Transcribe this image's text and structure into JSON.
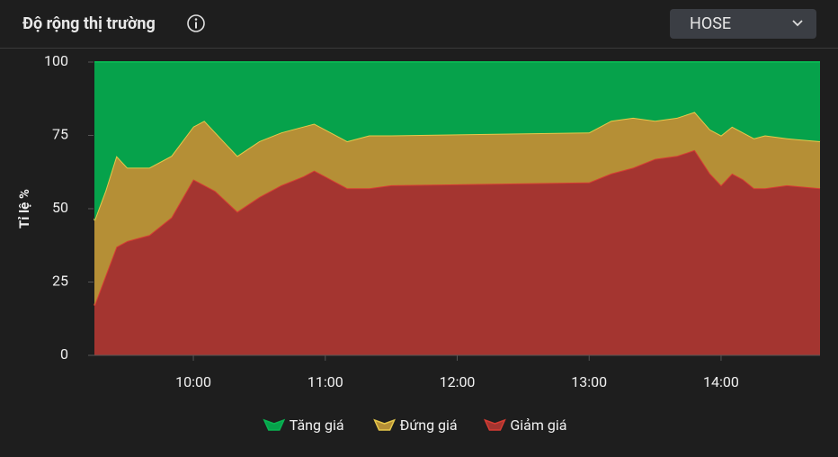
{
  "header": {
    "title": "Độ rộng thị trường",
    "exchange": "HOSE"
  },
  "chart_data": {
    "type": "area",
    "stacked": true,
    "ylabel": "Tỉ lệ %",
    "x": [
      "09:15",
      "09:20",
      "09:25",
      "09:30",
      "09:40",
      "09:50",
      "10:00",
      "10:05",
      "10:10",
      "10:20",
      "10:30",
      "10:40",
      "10:50",
      "10:55",
      "11:00",
      "11:10",
      "11:20",
      "11:30",
      "13:00",
      "13:10",
      "13:20",
      "13:30",
      "13:40",
      "13:48",
      "13:55",
      "14:00",
      "14:05",
      "14:10",
      "14:15",
      "14:20",
      "14:30",
      "14:45"
    ],
    "xlim": [
      "09:15",
      "14:45"
    ],
    "xticks": [
      "10:00",
      "11:00",
      "12:00",
      "13:00",
      "14:00"
    ],
    "ylim": [
      0,
      100
    ],
    "yticks": [
      0,
      25,
      50,
      75,
      100
    ],
    "series": [
      {
        "name": "Tăng giá",
        "color": "#06a24b",
        "line": "#09b552",
        "values": [
          54,
          44,
          32,
          36,
          36,
          32,
          22,
          20,
          24,
          32,
          27,
          24,
          22,
          21,
          23,
          27,
          25,
          25,
          24,
          20,
          19,
          20,
          19,
          17,
          23,
          25,
          22,
          24,
          26,
          25,
          26,
          27
        ]
      },
      {
        "name": "Đứng giá",
        "color": "#b58f36",
        "line": "#e6c84a",
        "values": [
          29,
          29,
          31,
          25,
          23,
          21,
          18,
          22,
          20,
          19,
          19,
          18,
          17,
          16,
          16,
          16,
          18,
          17,
          17,
          18,
          17,
          13,
          13,
          13,
          15,
          17,
          16,
          16,
          17,
          18,
          16,
          16
        ]
      },
      {
        "name": "Giảm giá",
        "color": "#a43530",
        "line": "#d63c33",
        "values": [
          17,
          27,
          37,
          39,
          41,
          47,
          60,
          58,
          56,
          49,
          54,
          58,
          61,
          63,
          61,
          57,
          57,
          58,
          59,
          62,
          64,
          67,
          68,
          70,
          62,
          58,
          62,
          60,
          57,
          57,
          58,
          57
        ]
      }
    ]
  }
}
